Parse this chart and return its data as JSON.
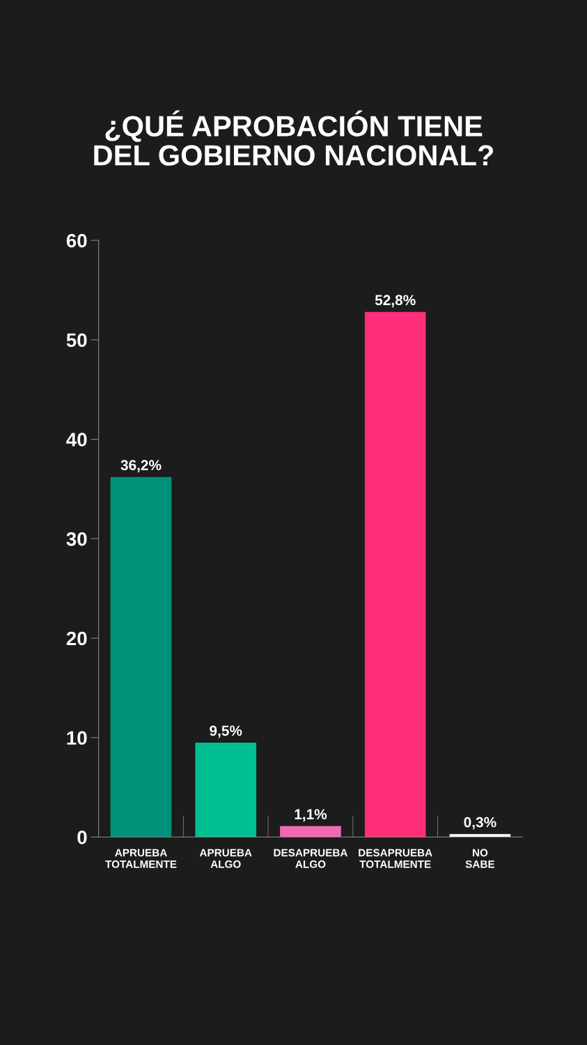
{
  "chart_data": {
    "type": "bar",
    "title": "¿QUÉ APROBACIÓN TIENE\nDEL GOBIERNO NACIONAL?",
    "categories": [
      "APRUEBA\nTOTALMENTE",
      "APRUEBA\nALGO",
      "DESAPRUEBA\nALGO",
      "DESAPRUEBA\nTOTALMENTE",
      "NO\nSABE"
    ],
    "values": [
      36.2,
      9.5,
      1.1,
      52.8,
      0.3
    ],
    "colors": [
      "#00917a",
      "#00bf93",
      "#f06ab0",
      "#ff2d7a",
      "#ffffff"
    ],
    "value_labels": [
      "36,2%",
      "9,5%",
      "1,1%",
      "52,8%",
      "0,3%"
    ],
    "ylim": [
      0,
      60
    ],
    "yticks": [
      0,
      10,
      20,
      30,
      40,
      50,
      60
    ],
    "grid": false,
    "legend": false
  }
}
